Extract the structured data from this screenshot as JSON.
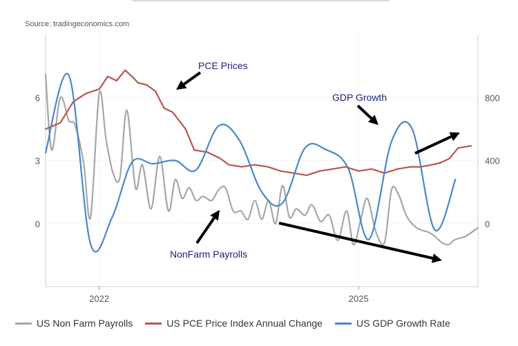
{
  "source": "Source: tradingeconomics.com",
  "chart_data": {
    "type": "line",
    "x_ticks": [
      "2022",
      "2025"
    ],
    "y_left_ticks": [
      "6",
      "3",
      "0"
    ],
    "y_right_ticks": [
      "800",
      "400",
      "0"
    ],
    "ylim_left": [
      -3,
      9
    ],
    "ylim_right": [
      -400,
      1200
    ],
    "grid": true,
    "legend_position": "bottom",
    "series": [
      {
        "name": "US Non Farm Payrolls",
        "axis": "left",
        "color": "#a6a6a6",
        "x": [
          2021.38,
          2021.45,
          2021.55,
          2021.65,
          2021.72,
          2021.82,
          2021.9,
          2022.0,
          2022.08,
          2022.16,
          2022.24,
          2022.32,
          2022.42,
          2022.5,
          2022.6,
          2022.7,
          2022.8,
          2022.88,
          2022.96,
          2023.04,
          2023.12,
          2023.2,
          2023.3,
          2023.38,
          2023.46,
          2023.55,
          2023.64,
          2023.72,
          2023.8,
          2023.88,
          2023.96,
          2024.04,
          2024.12,
          2024.2,
          2024.28,
          2024.38,
          2024.46,
          2024.56,
          2024.66,
          2024.76,
          2024.86,
          2024.94,
          2025.02,
          2025.1,
          2025.2,
          2025.3,
          2025.38,
          2025.46,
          2025.55,
          2025.64,
          2025.72,
          2025.8,
          2025.88,
          2025.96,
          2026.04,
          2026.1,
          2026.16,
          2026.24,
          2026.38
        ],
        "values": [
          7.1,
          3.5,
          6.0,
          4.9,
          4.7,
          2.9,
          0.3,
          6.2,
          4.0,
          2.4,
          2.2,
          5.4,
          1.7,
          2.8,
          0.7,
          3.2,
          0.6,
          2.1,
          1.2,
          1.7,
          1.1,
          1.3,
          1.1,
          1.6,
          1.7,
          0.6,
          0.6,
          0.2,
          1.1,
          0.2,
          1.1,
          0.0,
          1.8,
          0.3,
          0.7,
          0.4,
          0.9,
          0.1,
          0.4,
          -0.8,
          0.6,
          -1.0,
          0.1,
          1.2,
          -0.4,
          -0.9,
          1.6,
          1.4,
          0.4,
          -0.1,
          -0.3,
          -0.4,
          -0.6,
          -0.9,
          -1.0,
          -0.8,
          -0.7,
          -0.6,
          -0.2
        ]
      },
      {
        "name": "US PCE Price Index Annual Change",
        "axis": "left",
        "color": "#b85450",
        "x": [
          2021.38,
          2021.55,
          2021.7,
          2021.85,
          2022.0,
          2022.1,
          2022.2,
          2022.3,
          2022.38,
          2022.45,
          2022.55,
          2022.65,
          2022.75,
          2022.85,
          2023.0,
          2023.1,
          2023.25,
          2023.4,
          2023.5,
          2023.65,
          2023.8,
          2023.95,
          2024.1,
          2024.25,
          2024.4,
          2024.55,
          2024.7,
          2024.85,
          2025.0,
          2025.15,
          2025.3,
          2025.45,
          2025.6,
          2025.72,
          2025.85,
          2025.95,
          2026.05,
          2026.15,
          2026.3
        ],
        "values": [
          4.5,
          4.8,
          5.8,
          6.2,
          6.4,
          7.0,
          6.8,
          7.3,
          7.0,
          6.7,
          6.6,
          6.3,
          5.5,
          5.3,
          4.5,
          3.5,
          3.4,
          3.1,
          2.8,
          2.7,
          2.8,
          2.7,
          2.5,
          2.4,
          2.3,
          2.5,
          2.6,
          2.7,
          2.5,
          2.6,
          2.4,
          2.6,
          2.7,
          2.7,
          2.8,
          2.9,
          3.1,
          3.6,
          3.7
        ]
      },
      {
        "name": "US GDP Growth Rate",
        "axis": "right",
        "color": "#4a86c8",
        "x": [
          2021.38,
          2021.65,
          2021.9,
          2022.15,
          2022.38,
          2022.62,
          2022.88,
          2023.12,
          2023.38,
          2023.62,
          2023.88,
          2024.12,
          2024.38,
          2024.62,
          2024.88,
          2025.12,
          2025.38,
          2025.62,
          2025.88,
          2026.12
        ],
        "values": [
          450,
          940,
          -130,
          40,
          390,
          380,
          400,
          340,
          620,
          530,
          200,
          130,
          480,
          470,
          350,
          -100,
          520,
          600,
          -40,
          280
        ]
      }
    ]
  },
  "annotations": {
    "pce": "PCE Prices",
    "gdp": "GDP Growth",
    "nfp": "NonFarm Payrolls"
  }
}
